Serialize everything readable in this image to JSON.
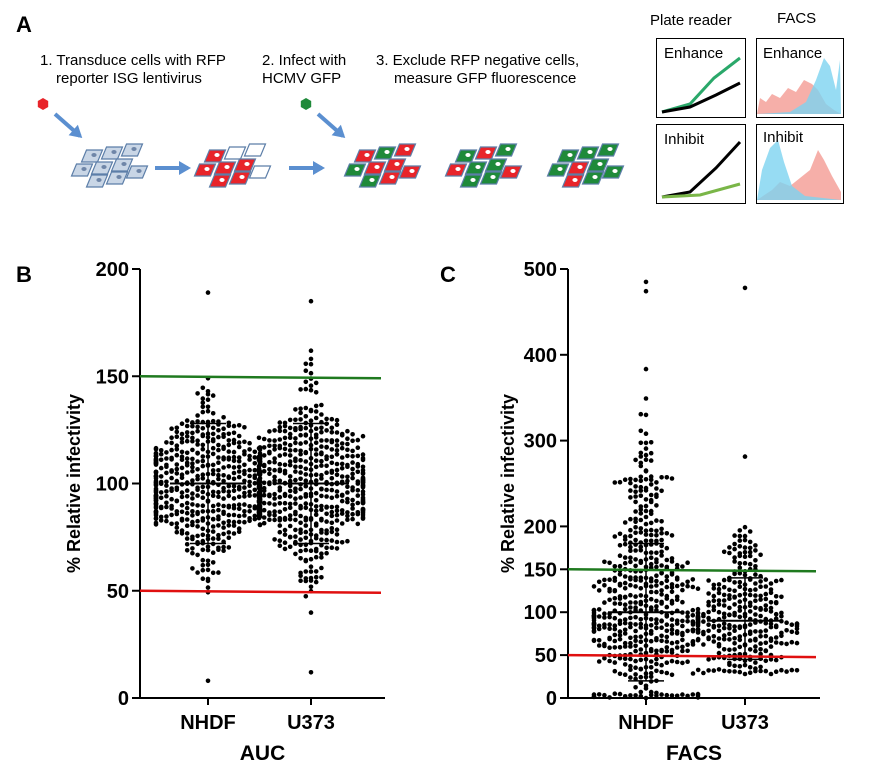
{
  "panel_a": {
    "letter": "A",
    "steps": [
      {
        "line1": "1. Transduce cells with RFP",
        "line2": "reporter ISG lentivirus"
      },
      {
        "line1": "2. Infect with",
        "line2": "HCMV GFP"
      },
      {
        "line1": "3. Exclude RFP negative cells,",
        "line2": "measure GFP fluorescence"
      }
    ],
    "plate_reader_title": "Plate reader",
    "facs_title": "FACS",
    "enhance_label": "Enhance",
    "inhibit_label": "Inhibit",
    "colors": {
      "rfp": "#e8242a",
      "gfp": "#1f8a3a",
      "cell_blank": "#c9d6e6",
      "cell_edge": "#5c7ea8",
      "arrow": "#5b8fd0",
      "facs_red": "#f4a19a",
      "facs_blue": "#7dd3f0"
    }
  },
  "chart_data": [
    {
      "type": "scatter",
      "letter": "B",
      "title": "",
      "xlabel": "AUC",
      "ylabel": "% Relative infectivity",
      "categories": [
        "NHDF",
        "U373"
      ],
      "ylim": [
        0,
        200
      ],
      "yticks": [
        0,
        50,
        100,
        150,
        200
      ],
      "threshold_lines": [
        {
          "value": 150,
          "color": "#1f7a1f"
        },
        {
          "value": 50,
          "color": "#e01010"
        }
      ],
      "summary": [
        {
          "category": "NHDF",
          "mean": 100,
          "sd_low": 72,
          "sd_high": 128
        },
        {
          "category": "U373",
          "mean": 100,
          "sd_low": 72,
          "sd_high": 128
        }
      ],
      "series": [
        {
          "name": "NHDF",
          "min": 8,
          "max": 189,
          "center": 100,
          "spread": 18,
          "n": 520
        },
        {
          "name": "U373",
          "min": 12,
          "max": 185,
          "center": 100,
          "spread": 20,
          "n": 520
        }
      ]
    },
    {
      "type": "scatter",
      "letter": "C",
      "title": "",
      "xlabel": "FACS",
      "ylabel": "% Relative infectivity",
      "categories": [
        "NHDF",
        "U373"
      ],
      "ylim": [
        0,
        500
      ],
      "yticks": [
        0,
        50,
        100,
        150,
        200,
        300,
        400,
        500
      ],
      "threshold_lines": [
        {
          "value": 150,
          "color": "#1f7a1f"
        },
        {
          "value": 50,
          "color": "#e01010"
        }
      ],
      "summary": [
        {
          "category": "NHDF",
          "mean": 100,
          "sd_low": 20,
          "sd_high": 180
        },
        {
          "category": "U373",
          "mean": 90,
          "sd_low": 45,
          "sd_high": 140
        }
      ],
      "series": [
        {
          "name": "NHDF",
          "min": 0,
          "max": 485,
          "center": 100,
          "spread": 55,
          "n": 520
        },
        {
          "name": "U373",
          "min": 28,
          "max": 478,
          "center": 90,
          "spread": 35,
          "n": 300
        }
      ]
    }
  ]
}
